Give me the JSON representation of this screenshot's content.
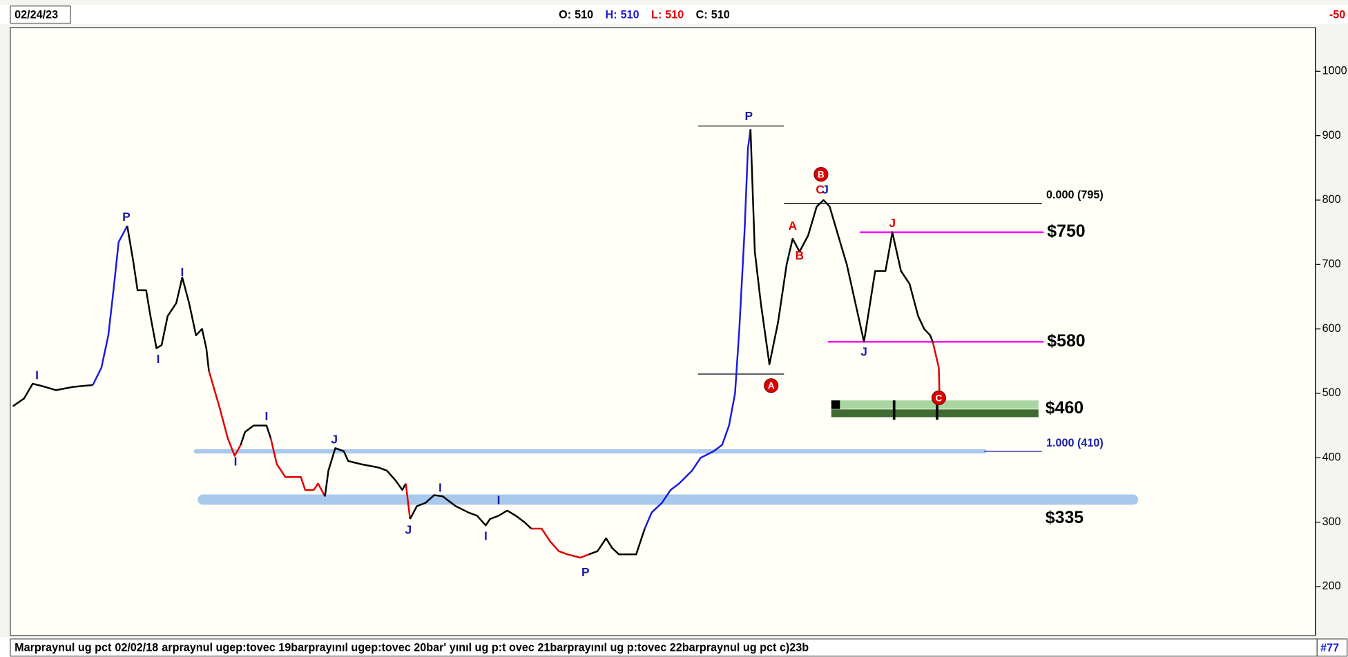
{
  "chart_data": {
    "type": "line",
    "date": "02/24/23",
    "ohlc": [
      {
        "label": "O:",
        "value": 510,
        "color": "#000000"
      },
      {
        "label": "H:",
        "value": 510,
        "color": "#1a1ad0"
      },
      {
        "label": "L:",
        "value": 510,
        "color": "#e00000"
      },
      {
        "label": "C:",
        "value": 510,
        "color": "#000000"
      }
    ],
    "corner_label": "-50",
    "footer": [
      "Marpraynul ug pct",
      "02/02/18",
      "arpraynul ugep:tovec 19barprayınıl ugep:tovec 20bar' yınıl ug p:t ovec 21barprayınıl ug p:tovec 22barpraynul ug pct c)23b"
    ],
    "footer_right": "#77",
    "xlim": [
      12,
      1530
    ],
    "ylim": [
      124,
      1068
    ],
    "yticks": [
      200,
      300,
      400,
      500,
      600,
      700,
      800,
      900,
      1000
    ],
    "series": [
      {
        "color": "#000000",
        "x": [
          15,
          28,
          38,
          50,
          65,
          85,
          108
        ],
        "values": [
          480,
          492,
          515,
          511,
          505,
          510,
          513
        ]
      },
      {
        "color": "#1a1ae0",
        "x": [
          108,
          118,
          126,
          132,
          138,
          148
        ],
        "values": [
          513,
          540,
          590,
          660,
          735,
          760
        ]
      },
      {
        "color": "#000000",
        "x": [
          148,
          155,
          160,
          170,
          175,
          182,
          188,
          195,
          205,
          212,
          220,
          228,
          235,
          240,
          243
        ],
        "values": [
          760,
          705,
          660,
          660,
          620,
          570,
          575,
          620,
          640,
          680,
          640,
          590,
          600,
          570,
          535
        ]
      },
      {
        "color": "#e00000",
        "x": [
          243,
          255,
          265,
          273,
          280
        ],
        "values": [
          535,
          480,
          430,
          403,
          420
        ]
      },
      {
        "color": "#000000",
        "x": [
          280,
          285,
          295,
          310,
          315
        ],
        "values": [
          420,
          440,
          450,
          450,
          430
        ]
      },
      {
        "color": "#e00000",
        "x": [
          315,
          322,
          332,
          350,
          355,
          365,
          370,
          378
        ],
        "values": [
          430,
          390,
          370,
          370,
          350,
          350,
          360,
          340
        ]
      },
      {
        "color": "#000000",
        "x": [
          378,
          382,
          390,
          400,
          405,
          420,
          440,
          450,
          460,
          468,
          472
        ],
        "values": [
          340,
          380,
          415,
          410,
          395,
          390,
          385,
          380,
          365,
          350,
          360
        ]
      },
      {
        "color": "#e00000",
        "x": [
          472,
          477
        ],
        "values": [
          360,
          305
        ]
      },
      {
        "color": "#000000",
        "x": [
          477,
          485,
          495,
          505,
          515,
          520,
          530,
          545,
          555,
          565,
          570,
          580,
          590,
          600,
          610,
          618
        ],
        "values": [
          305,
          325,
          330,
          342,
          340,
          335,
          325,
          315,
          310,
          295,
          305,
          310,
          318,
          310,
          300,
          290
        ]
      },
      {
        "color": "#e00000",
        "x": [
          618,
          630,
          640,
          650,
          660,
          675,
          685
        ],
        "values": [
          290,
          290,
          270,
          255,
          250,
          245,
          250
        ]
      },
      {
        "color": "#000000",
        "x": [
          685,
          695,
          705,
          712,
          720,
          740,
          750
        ],
        "values": [
          250,
          255,
          275,
          260,
          250,
          250,
          290
        ]
      },
      {
        "color": "#1a1ae0",
        "x": [
          750,
          758,
          770,
          780,
          790,
          805,
          815,
          830,
          840,
          848,
          855,
          860,
          866,
          870,
          873
        ],
        "values": [
          290,
          315,
          330,
          350,
          360,
          380,
          400,
          410,
          420,
          450,
          500,
          600,
          750,
          880,
          910
        ]
      },
      {
        "color": "#000000",
        "x": [
          873,
          878,
          885,
          895,
          905,
          915,
          922,
          930,
          940,
          950,
          958,
          965,
          975,
          985,
          995,
          1005,
          1018,
          1030,
          1038,
          1048,
          1058,
          1068,
          1075,
          1082,
          1085
        ],
        "values": [
          910,
          720,
          640,
          545,
          610,
          700,
          740,
          720,
          745,
          790,
          800,
          790,
          745,
          700,
          640,
          580,
          690,
          690,
          750,
          690,
          670,
          620,
          600,
          590,
          580
        ]
      },
      {
        "color": "#e00000",
        "x": [
          1085,
          1092,
          1093
        ],
        "values": [
          580,
          540,
          490
        ]
      }
    ],
    "annotations": [
      {
        "text": "I",
        "x": 43,
        "y": 527,
        "color": "#1a1aa0"
      },
      {
        "text": "P",
        "x": 147,
        "y": 773,
        "color": "#1a1aa0"
      },
      {
        "text": "I",
        "x": 184,
        "y": 552,
        "color": "#1a1aa0"
      },
      {
        "text": "I",
        "x": 212,
        "y": 687,
        "color": "#1a1aa0"
      },
      {
        "text": "I",
        "x": 274,
        "y": 393,
        "color": "#1a1aa0"
      },
      {
        "text": "I",
        "x": 310,
        "y": 463,
        "color": "#1a1aa0"
      },
      {
        "text": "J",
        "x": 389,
        "y": 427,
        "color": "#1a1aa0"
      },
      {
        "text": "J",
        "x": 475,
        "y": 287,
        "color": "#1a1aa0"
      },
      {
        "text": "I",
        "x": 512,
        "y": 352,
        "color": "#1a1aa0"
      },
      {
        "text": "I",
        "x": 565,
        "y": 277,
        "color": "#1a1aa0"
      },
      {
        "text": "I",
        "x": 580,
        "y": 333,
        "color": "#1a1aa0"
      },
      {
        "text": "P",
        "x": 681,
        "y": 221,
        "color": "#1a1aa0"
      },
      {
        "text": "P",
        "x": 871,
        "y": 929,
        "color": "#1a1aa0"
      },
      {
        "text": "A",
        "x": 922,
        "y": 759,
        "color": "#e00000"
      },
      {
        "text": "B",
        "x": 930,
        "y": 713,
        "color": "#e00000"
      },
      {
        "text": "C",
        "x": 954,
        "y": 815,
        "color": "#e00000"
      },
      {
        "text": "J",
        "x": 960,
        "y": 815,
        "color": "#1a1aa0"
      },
      {
        "text": "J",
        "x": 1038,
        "y": 763,
        "color": "#e00000"
      },
      {
        "text": "J",
        "x": 1005,
        "y": 563,
        "color": "#1a1aa0"
      }
    ],
    "circles": [
      {
        "text": "A",
        "x": 897,
        "y": 512
      },
      {
        "text": "B",
        "x": 955,
        "y": 840
      },
      {
        "text": "C",
        "x": 1092,
        "y": 493
      }
    ],
    "bands": [
      {
        "value": 410,
        "x": [
          228,
          1145
        ],
        "color": "#a8c8ec",
        "width": 5
      },
      {
        "value": 335,
        "x": [
          236,
          1318
        ],
        "color": "#a8c8ec",
        "width": 12,
        "label": "$335"
      }
    ],
    "swing_lines": [
      {
        "value": 915,
        "x": [
          812,
          912
        ]
      },
      {
        "value": 530,
        "x": [
          812,
          912
        ]
      }
    ],
    "fib": [
      {
        "label": "0.000 (795)",
        "value": 795,
        "x": [
          912,
          1212
        ],
        "color": "#000000"
      },
      {
        "label": "1.000 (410)",
        "value": 410,
        "x": [
          1145,
          1212
        ],
        "color": "#1a1aa0"
      }
    ],
    "levels": [
      {
        "label": "$750",
        "value": 750,
        "x": [
          1000,
          1214
        ],
        "color": "#ff00ff"
      },
      {
        "label": "$580",
        "value": 580,
        "x": [
          963,
          1214
        ],
        "color": "#ff00ff"
      }
    ],
    "zone": {
      "label": "$460",
      "x": [
        967,
        1208
      ],
      "parts": [
        {
          "from": 476,
          "to": 489,
          "color": "#a8d5a0"
        },
        {
          "from": 463,
          "to": 475,
          "color": "#3d6b30"
        }
      ],
      "marks": [
        1040,
        1090
      ]
    }
  }
}
